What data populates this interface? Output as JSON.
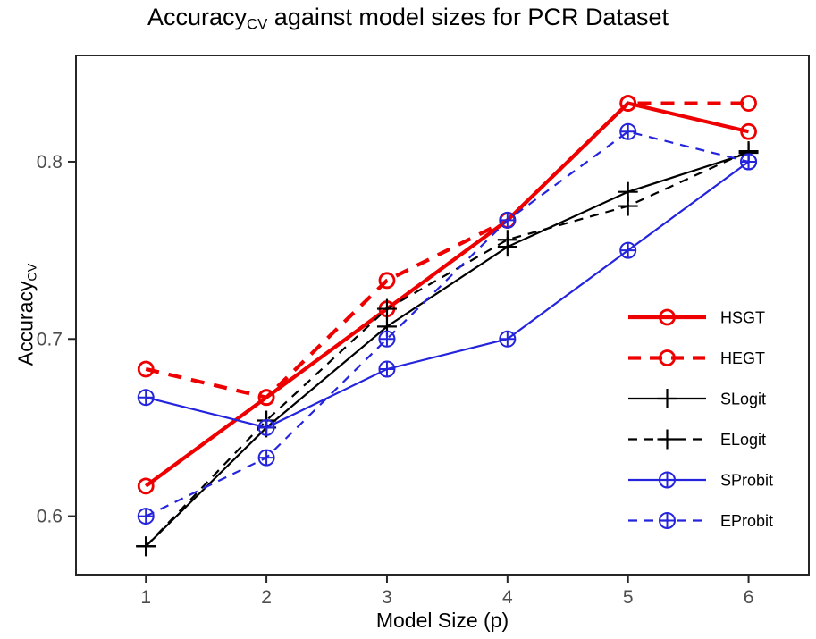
{
  "title": {
    "prefix": "Accuracy",
    "subscript": "CV",
    "suffix": " against model sizes for PCR Dataset"
  },
  "y_axis": {
    "prefix": "Accuracy",
    "subscript": "CV"
  },
  "chart_data": {
    "type": "line",
    "title": "Accuracy_CV against model sizes for PCR Dataset",
    "xlabel": "Model Size (p)",
    "ylabel": "Accuracy_CV",
    "x": [
      1,
      2,
      3,
      4,
      5,
      6
    ],
    "x_ticks": [
      1,
      2,
      3,
      4,
      5,
      6
    ],
    "x_tick_labels": [
      "1",
      "2",
      "3",
      "4",
      "5",
      "6"
    ],
    "y_ticks": [
      0.6,
      0.7,
      0.8
    ],
    "y_tick_labels": [
      "0.6",
      "0.7",
      "0.8"
    ],
    "xlim": [
      0.42,
      6.5
    ],
    "ylim": [
      0.567,
      0.86
    ],
    "grid": false,
    "legend_position": "right-middle",
    "series": [
      {
        "name": "HSGT",
        "color": "#EE0000",
        "style": "solid",
        "width": 4.2,
        "marker": "circle",
        "values": [
          0.617,
          0.667,
          0.717,
          0.767,
          0.833,
          0.817
        ]
      },
      {
        "name": "HEGT",
        "color": "#EE0000",
        "style": "dashed",
        "width": 4.2,
        "marker": "circle",
        "values": [
          0.683,
          0.667,
          0.733,
          0.767,
          0.833,
          0.833
        ]
      },
      {
        "name": "SLogit",
        "color": "#000000",
        "style": "solid",
        "width": 2.2,
        "marker": "plus",
        "values": [
          0.583,
          0.65,
          0.707,
          0.752,
          0.783,
          0.805
        ]
      },
      {
        "name": "ELogit",
        "color": "#000000",
        "style": "dashed",
        "width": 2.2,
        "marker": "plus",
        "values": [
          0.583,
          0.654,
          0.717,
          0.756,
          0.775,
          0.806
        ]
      },
      {
        "name": "SProbit",
        "color": "#2424DD",
        "style": "solid",
        "width": 2.2,
        "marker": "circle-plus",
        "values": [
          0.667,
          0.65,
          0.683,
          0.7,
          0.75,
          0.8
        ]
      },
      {
        "name": "EProbit",
        "color": "#2424DD",
        "style": "dashed",
        "width": 2.2,
        "marker": "circle-plus",
        "values": [
          0.6,
          0.633,
          0.7,
          0.767,
          0.817,
          0.8
        ]
      }
    ]
  }
}
